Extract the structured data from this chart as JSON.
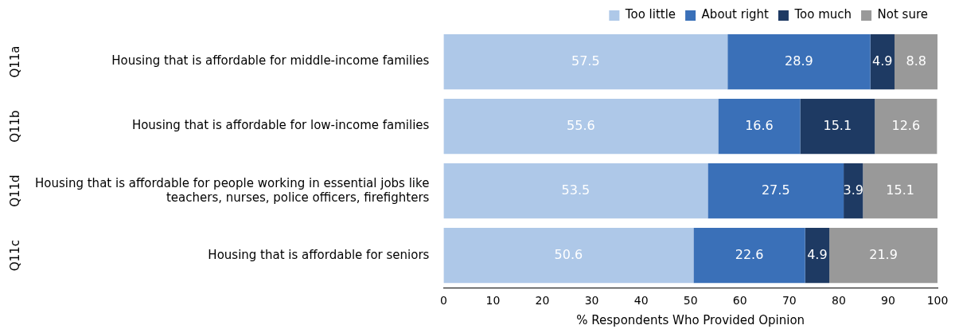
{
  "chart_data": {
    "type": "bar",
    "orientation": "horizontal",
    "stacked": true,
    "data_labels": true,
    "grid": false,
    "legend": "top right",
    "categories": [
      "Housing that is affordable for middle-income families",
      "Housing that is affordable for low-income families",
      "Housing that is affordable for people working in essential jobs like teachers, nurses, police officers, firefighters",
      "Housing that is affordable for seniors"
    ],
    "series": [
      {
        "name": "Too little",
        "color": "#aec8e8",
        "values": [
          57.5,
          55.6,
          53.5,
          50.6
        ]
      },
      {
        "name": "About right",
        "color": "#3a70b8",
        "values": [
          28.9,
          16.6,
          27.5,
          22.6
        ]
      },
      {
        "name": "Too much",
        "color": "#1e3a63",
        "values": [
          4.9,
          15.1,
          3.9,
          4.9
        ]
      },
      {
        "name": "Not sure",
        "color": "#999999",
        "values": [
          8.8,
          12.6,
          15.1,
          21.9
        ]
      }
    ],
    "xlabel": "% Respondents Who Provided Opinion",
    "xlim": [
      0,
      100
    ],
    "xticks": [
      0,
      10,
      20,
      30,
      40,
      50,
      60,
      70,
      80,
      90,
      100
    ],
    "annotations": [
      "Q11a",
      "Q11b",
      "Q11d",
      "Q11c"
    ]
  }
}
